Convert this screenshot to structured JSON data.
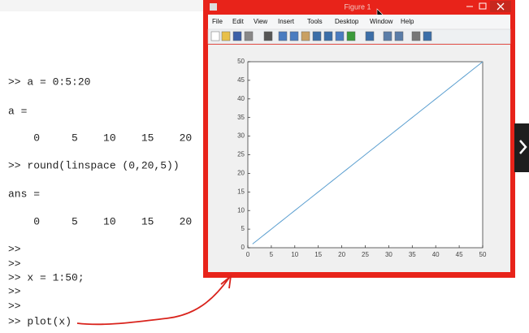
{
  "console": {
    "lines": [
      ">> a = 0:5:20",
      "a =",
      "    0     5    10    15    20",
      ">> round(linspace (0,20,5))",
      "ans =",
      "    0     5    10    15    20",
      ">>",
      ">>",
      ">> x = 1:50;",
      ">>",
      ">>",
      ">> plot(x)"
    ]
  },
  "window": {
    "title": "Figure 1",
    "menu": [
      "File",
      "Edit",
      "View",
      "Insert",
      "Tools",
      "Desktop",
      "Window",
      "Help"
    ]
  },
  "chart_data": {
    "type": "line",
    "x": [
      1,
      2,
      3,
      4,
      5,
      6,
      7,
      8,
      9,
      10,
      11,
      12,
      13,
      14,
      15,
      16,
      17,
      18,
      19,
      20,
      21,
      22,
      23,
      24,
      25,
      26,
      27,
      28,
      29,
      30,
      31,
      32,
      33,
      34,
      35,
      36,
      37,
      38,
      39,
      40,
      41,
      42,
      43,
      44,
      45,
      46,
      47,
      48,
      49,
      50
    ],
    "values": [
      1,
      2,
      3,
      4,
      5,
      6,
      7,
      8,
      9,
      10,
      11,
      12,
      13,
      14,
      15,
      16,
      17,
      18,
      19,
      20,
      21,
      22,
      23,
      24,
      25,
      26,
      27,
      28,
      29,
      30,
      31,
      32,
      33,
      34,
      35,
      36,
      37,
      38,
      39,
      40,
      41,
      42,
      43,
      44,
      45,
      46,
      47,
      48,
      49,
      50
    ],
    "color": "#5b9fd0",
    "xlim": [
      0,
      50
    ],
    "ylim": [
      0,
      50
    ],
    "xticks": [
      0,
      5,
      10,
      15,
      20,
      25,
      30,
      35,
      40,
      45,
      50
    ],
    "yticks": [
      0,
      5,
      10,
      15,
      20,
      25,
      30,
      35,
      40,
      45,
      50
    ]
  }
}
